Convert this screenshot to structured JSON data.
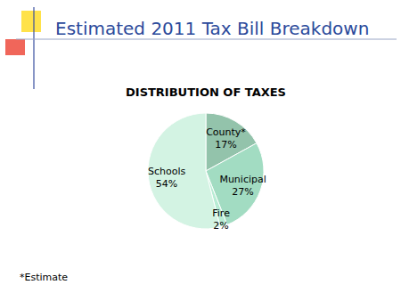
{
  "page": {
    "heading": "Estimated 2011 Tax Bill Breakdown",
    "note": "*Estimate"
  },
  "chart_data": {
    "type": "pie",
    "title": "DISTRIBUTION OF TAXES",
    "categories": [
      "County*",
      "Municipal",
      "Fire",
      "Schools"
    ],
    "values": [
      17,
      27,
      2,
      54
    ],
    "value_labels": [
      "17%",
      "27%",
      "2%",
      "54%"
    ],
    "colors": [
      "#93c3ab",
      "#a2dcc2",
      "#b8ecd4",
      "#d3f3e3"
    ],
    "data_labels": true
  }
}
